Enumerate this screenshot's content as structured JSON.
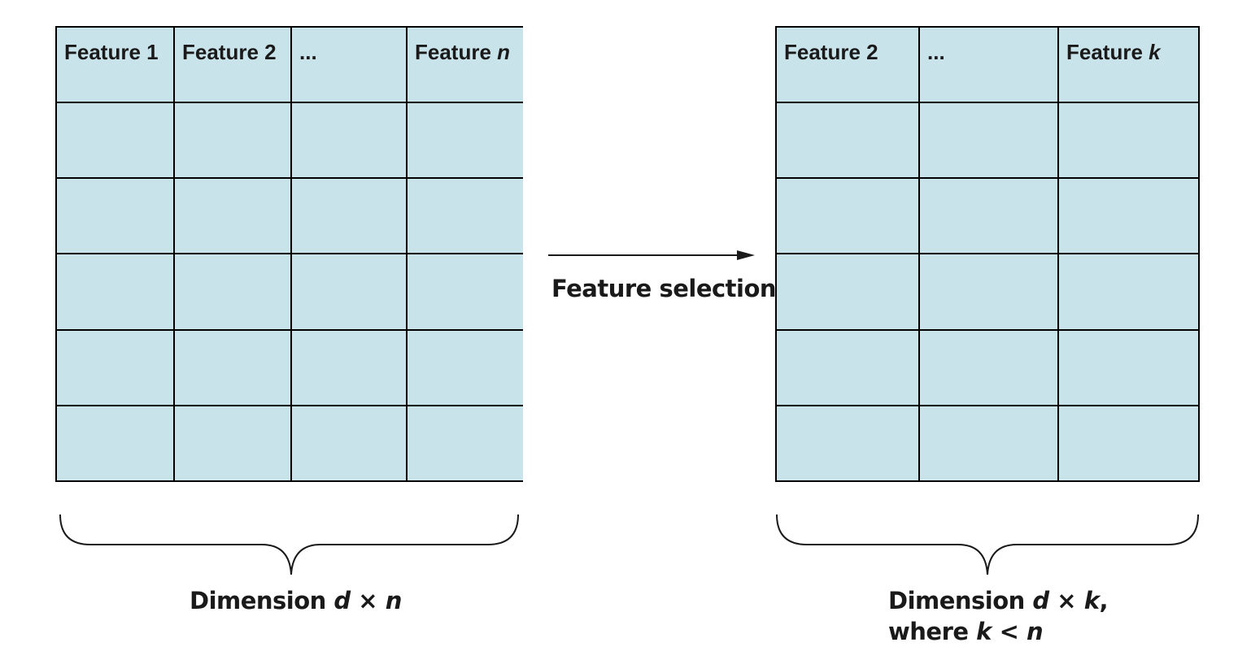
{
  "left_table": {
    "headers": [
      {
        "text": "Feature 1",
        "var": ""
      },
      {
        "text": "Feature 2",
        "var": ""
      },
      {
        "text": "...",
        "var": ""
      },
      {
        "text": "Feature ",
        "var": "n"
      }
    ],
    "body_rows": 5,
    "caption": {
      "prefix": "Dimension ",
      "var1": "d",
      "op": " × ",
      "var2": "n"
    }
  },
  "arrow": {
    "label": "Feature selection"
  },
  "right_table": {
    "headers": [
      {
        "text": "Feature 2",
        "var": ""
      },
      {
        "text": "...",
        "var": ""
      },
      {
        "text": "Feature ",
        "var": "k"
      }
    ],
    "body_rows": 5,
    "caption": {
      "line1_prefix": "Dimension ",
      "var1": "d",
      "op": " × ",
      "var2": "k",
      "line1_suffix": ",",
      "line2_prefix": "where ",
      "var3": "k",
      "op2": " < ",
      "var4": "n"
    }
  },
  "colors": {
    "cell_fill": "#c9e3ea",
    "grid_line": "#000000",
    "text": "#1a1a1a"
  }
}
